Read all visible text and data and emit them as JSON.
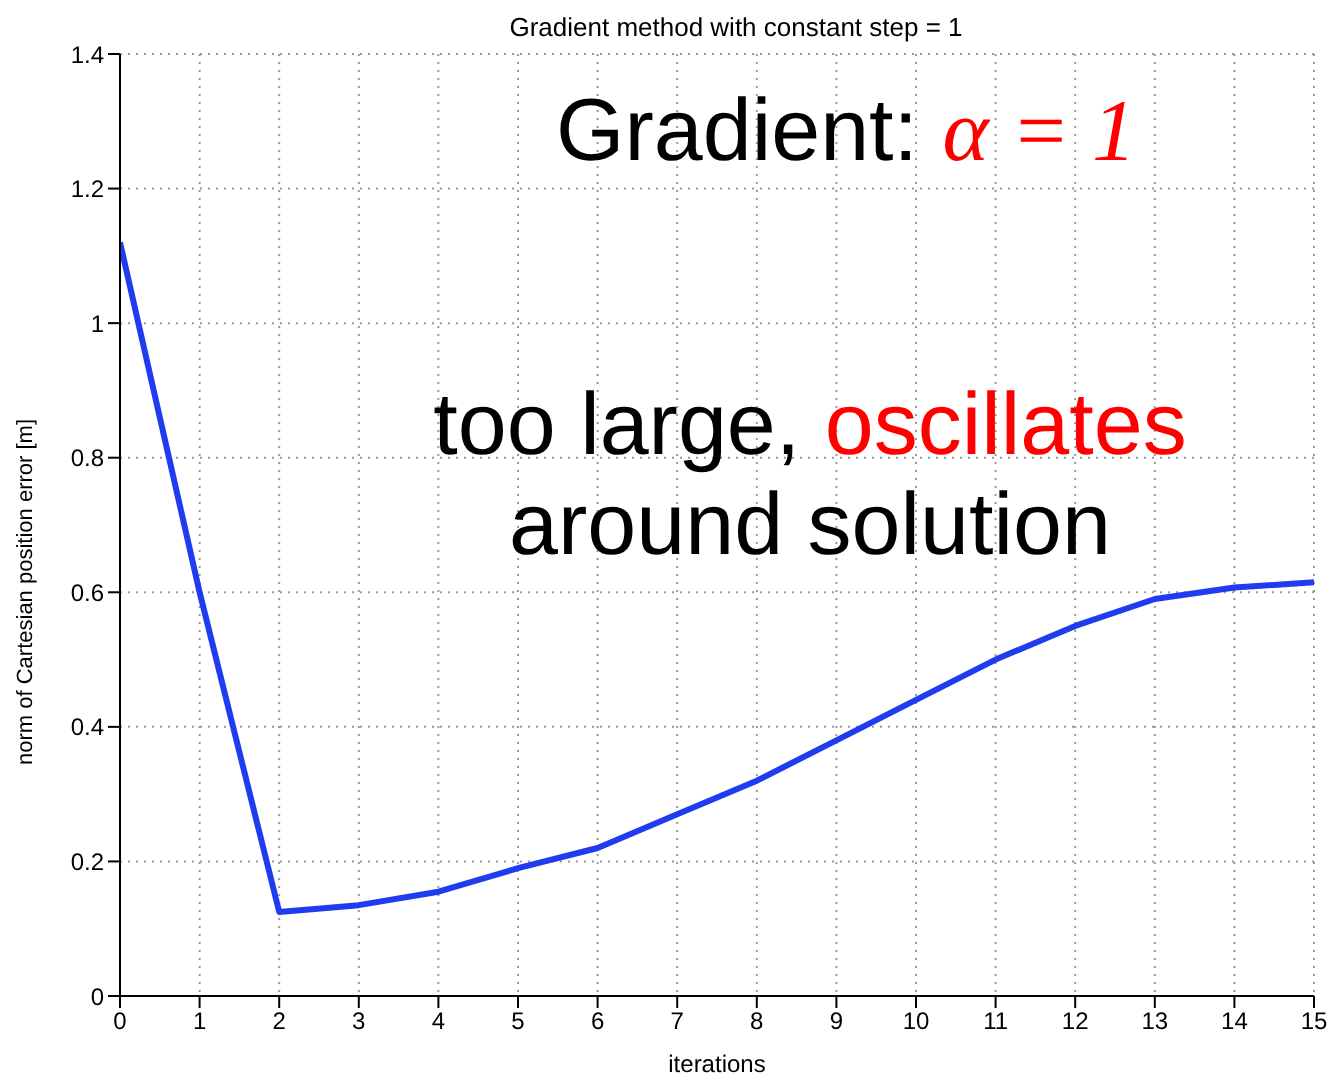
{
  "chart_data": {
    "type": "line",
    "title": "Gradient method with constant step = 1",
    "xlabel": "iterations",
    "ylabel": "norm of Cartesian position error [m]",
    "annotations": [
      "Gradient: ",
      "α = 1",
      "too large, ",
      "oscillates",
      "around solution"
    ],
    "x": [
      0,
      1,
      2,
      3,
      4,
      5,
      6,
      7,
      8,
      9,
      10,
      11,
      12,
      13,
      14,
      15
    ],
    "series": [
      {
        "color": "#1f3cf0",
        "values": [
          1.12,
          0.6,
          0.125,
          0.135,
          0.155,
          0.19,
          0.22,
          0.27,
          0.32,
          0.38,
          0.44,
          0.5,
          0.55,
          0.59,
          0.607,
          0.615
        ]
      }
    ],
    "xlim": [
      0,
      15
    ],
    "xticks": [
      0,
      1,
      2,
      3,
      4,
      5,
      6,
      7,
      8,
      9,
      10,
      11,
      12,
      13,
      14,
      15
    ],
    "ylim": [
      0,
      1.4
    ],
    "yticks": [
      0,
      0.2,
      0.4,
      0.6,
      0.8,
      1,
      1.2,
      1.4
    ],
    "grid": true,
    "marker": "none",
    "line_style": "solid",
    "legend": false
  }
}
